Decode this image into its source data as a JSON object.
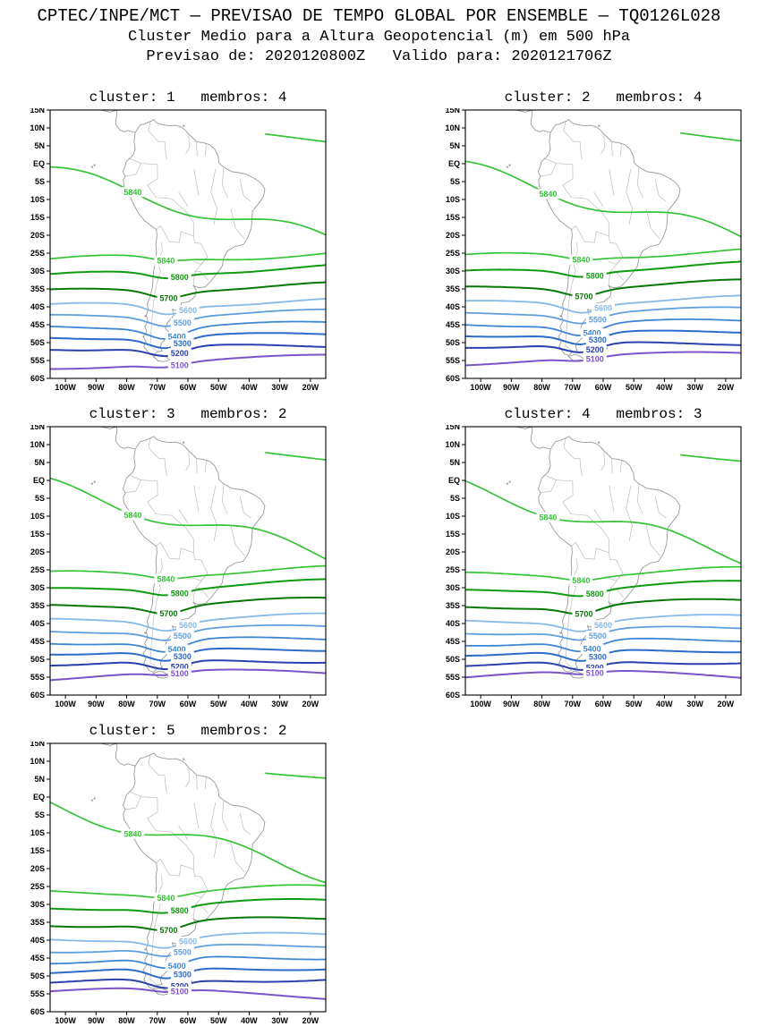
{
  "header": {
    "line1": "CPTEC/INPE/MCT — PREVISAO DE TEMPO GLOBAL POR ENSEMBLE — TQ0126L028",
    "line2": "Cluster Medio para a Altura Geopotencial (m) em 500 hPa",
    "line3": "Previsao de: 2020120800Z   Valido para: 2020121706Z"
  },
  "chart_data": {
    "type": "contour-map",
    "title": "Cluster Medio para a Altura Geopotencial (m) em 500 hPa",
    "variable": "Altura Geopotencial em 500 hPa",
    "units": "m",
    "init_time": "2020120800Z",
    "valid_time": "2020121706Z",
    "model": "CPTEC/INPE/MCT PREVISAO DE TEMPO GLOBAL POR ENSEMBLE TQ0126L028",
    "panels": [
      {
        "cluster": 1,
        "membros": 4,
        "title": "cluster: 1   membros: 4"
      },
      {
        "cluster": 2,
        "membros": 4,
        "title": "cluster: 2   membros: 4"
      },
      {
        "cluster": 3,
        "membros": 2,
        "title": "cluster: 3   membros: 2"
      },
      {
        "cluster": 4,
        "membros": 3,
        "title": "cluster: 4   membros: 3"
      },
      {
        "cluster": 5,
        "membros": 2,
        "title": "cluster: 5   membros: 2"
      }
    ],
    "lat_ticks": [
      "15N",
      "10N",
      "5N",
      "EQ",
      "5S",
      "10S",
      "15S",
      "20S",
      "25S",
      "30S",
      "35S",
      "40S",
      "45S",
      "50S",
      "55S",
      "60S"
    ],
    "lon_ticks": [
      "100W",
      "90W",
      "80W",
      "70W",
      "60W",
      "50W",
      "40W",
      "30W",
      "20W"
    ],
    "lon_range_deg": [
      -105,
      -15
    ],
    "lat_range_deg": [
      15,
      -60
    ],
    "contour_levels_m": [
      5100,
      5200,
      5300,
      5400,
      5500,
      5600,
      5700,
      5800,
      5840
    ],
    "contours": [
      {
        "level": "5840",
        "color": "#35c435",
        "w": 1.7,
        "base": -2.0,
        "slope": -19.0,
        "amp": 2.5,
        "freq": 1.3,
        "phase": 0.1,
        "dip": 0.0,
        "t0": 0.0,
        "t1": 1.0,
        "labels": [
          0.3
        ]
      },
      {
        "level": "5840",
        "color": "#35c435",
        "w": 1.7,
        "base": 13.5,
        "slope": -7.0,
        "amp": 1.0,
        "freq": 0.5,
        "phase": 0.0,
        "dip": 0.0,
        "t0": 0.78,
        "t1": 1.0,
        "labels": []
      },
      {
        "level": "5840",
        "color": "#35c435",
        "w": 1.7,
        "base": -26.5,
        "slope": 1.5,
        "amp": 1.0,
        "freq": 1.0,
        "phase": 0.05,
        "dip": 1.0,
        "t0": 0.0,
        "t1": 1.0,
        "labels": [
          0.42
        ]
      },
      {
        "level": "5800",
        "color": "#0f9b0f",
        "w": 2.0,
        "base": -31.0,
        "slope": 2.5,
        "amp": 0.8,
        "freq": 1.0,
        "phase": 0.12,
        "dip": 1.5,
        "t0": 0.0,
        "t1": 1.0,
        "labels": [
          0.47
        ]
      },
      {
        "level": "5700",
        "color": "#067806",
        "w": 2.0,
        "base": -35.5,
        "slope": 2.0,
        "amp": 0.8,
        "freq": 1.0,
        "phase": 0.2,
        "dip": 2.0,
        "t0": 0.0,
        "t1": 1.0,
        "labels": [
          0.43
        ]
      },
      {
        "level": "5600",
        "color": "#86b9e8",
        "w": 1.8,
        "base": -39.5,
        "slope": 1.5,
        "amp": 0.8,
        "freq": 1.0,
        "phase": 0.15,
        "dip": 2.5,
        "t0": 0.0,
        "t1": 1.0,
        "labels": [
          0.5
        ]
      },
      {
        "level": "5500",
        "color": "#5f9fdf",
        "w": 1.8,
        "base": -42.5,
        "slope": 1.5,
        "amp": 0.7,
        "freq": 1.0,
        "phase": 0.3,
        "dip": 2.5,
        "t0": 0.0,
        "t1": 1.0,
        "labels": [
          0.48
        ]
      },
      {
        "level": "5400",
        "color": "#3f85d6",
        "w": 1.8,
        "base": -45.5,
        "slope": 1.2,
        "amp": 0.7,
        "freq": 1.0,
        "phase": 0.4,
        "dip": 3.0,
        "t0": 0.0,
        "t1": 1.0,
        "labels": [
          0.46
        ]
      },
      {
        "level": "5300",
        "color": "#2b6bc9",
        "w": 2.0,
        "base": -48.3,
        "slope": 1.0,
        "amp": 0.6,
        "freq": 1.0,
        "phase": 0.5,
        "dip": 3.0,
        "t0": 0.0,
        "t1": 1.0,
        "labels": [
          0.48
        ]
      },
      {
        "level": "5200",
        "color": "#2c3fae",
        "w": 2.0,
        "base": -51.3,
        "slope": 0.8,
        "amp": 0.6,
        "freq": 1.0,
        "phase": 0.6,
        "dip": 2.5,
        "t0": 0.0,
        "t1": 1.0,
        "labels": [
          0.47
        ]
      },
      {
        "level": "5100",
        "color": "#7b52c9",
        "w": 2.0,
        "base": -55.0,
        "slope": 0.0,
        "amp": 2.0,
        "freq": 0.5,
        "phase": -0.25,
        "dip": 1.0,
        "t0": 0.0,
        "t1": 1.0,
        "labels": [
          0.47
        ]
      }
    ],
    "map": {
      "stroke": "#9a9a9a",
      "border_stroke": "#bdbdbd",
      "coast": [
        {
          "closed": true,
          "pts": [
            [
              -77.2,
              8.7
            ],
            [
              -75.6,
              10.8
            ],
            [
              -74.2,
              11.1
            ],
            [
              -72.3,
              11.8
            ],
            [
              -71.1,
              12.3
            ],
            [
              -70.2,
              11.4
            ],
            [
              -68.3,
              10.9
            ],
            [
              -66.2,
              10.6
            ],
            [
              -63.9,
              10.7
            ],
            [
              -62.1,
              10.2
            ],
            [
              -60.8,
              9.3
            ],
            [
              -59.8,
              8.3
            ],
            [
              -58.5,
              7.3
            ],
            [
              -57.2,
              6.1
            ],
            [
              -55.1,
              5.9
            ],
            [
              -52.9,
              5.3
            ],
            [
              -51.3,
              4.1
            ],
            [
              -50.1,
              2.0
            ],
            [
              -49.9,
              0.2
            ],
            [
              -48.4,
              -0.9
            ],
            [
              -45.8,
              -2.2
            ],
            [
              -43.4,
              -2.5
            ],
            [
              -41.1,
              -2.9
            ],
            [
              -38.7,
              -3.9
            ],
            [
              -36.5,
              -5.1
            ],
            [
              -34.9,
              -7.0
            ],
            [
              -35.3,
              -9.2
            ],
            [
              -37.1,
              -11.3
            ],
            [
              -38.9,
              -13.2
            ],
            [
              -39.1,
              -15.7
            ],
            [
              -39.3,
              -17.9
            ],
            [
              -40.3,
              -20.4
            ],
            [
              -41.9,
              -22.6
            ],
            [
              -44.6,
              -23.1
            ],
            [
              -47.1,
              -24.4
            ],
            [
              -48.3,
              -26.3
            ],
            [
              -48.8,
              -28.6
            ],
            [
              -50.7,
              -30.9
            ],
            [
              -52.4,
              -32.7
            ],
            [
              -54.3,
              -34.4
            ],
            [
              -56.6,
              -34.7
            ],
            [
              -58.2,
              -34.1
            ],
            [
              -57.3,
              -35.4
            ],
            [
              -57.7,
              -37.1
            ],
            [
              -59.8,
              -38.6
            ],
            [
              -62.1,
              -38.9
            ],
            [
              -62.4,
              -40.7
            ],
            [
              -64.3,
              -41.0
            ],
            [
              -65.1,
              -40.7
            ],
            [
              -64.6,
              -42.4
            ],
            [
              -66.8,
              -44.6
            ],
            [
              -67.4,
              -46.1
            ],
            [
              -65.9,
              -47.3
            ],
            [
              -67.0,
              -48.8
            ],
            [
              -68.6,
              -50.1
            ],
            [
              -69.0,
              -51.3
            ],
            [
              -68.4,
              -52.4
            ],
            [
              -69.9,
              -52.5
            ],
            [
              -71.3,
              -53.6
            ],
            [
              -72.6,
              -53.2
            ],
            [
              -73.4,
              -52.2
            ],
            [
              -74.4,
              -51.1
            ],
            [
              -73.7,
              -49.7
            ],
            [
              -74.6,
              -48.3
            ],
            [
              -73.4,
              -46.9
            ],
            [
              -74.1,
              -45.5
            ],
            [
              -73.1,
              -44.0
            ],
            [
              -73.6,
              -42.4
            ],
            [
              -73.0,
              -40.8
            ],
            [
              -73.3,
              -39.3
            ],
            [
              -72.4,
              -37.2
            ],
            [
              -71.6,
              -34.6
            ],
            [
              -71.4,
              -32.2
            ],
            [
              -71.2,
              -29.9
            ],
            [
              -70.5,
              -27.1
            ],
            [
              -70.3,
              -24.6
            ],
            [
              -70.5,
              -22.4
            ],
            [
              -70.1,
              -20.3
            ],
            [
              -70.3,
              -18.4
            ],
            [
              -71.8,
              -17.5
            ],
            [
              -74.2,
              -15.9
            ],
            [
              -76.1,
              -13.9
            ],
            [
              -77.6,
              -11.6
            ],
            [
              -79.1,
              -8.7
            ],
            [
              -80.9,
              -6.3
            ],
            [
              -81.1,
              -4.6
            ],
            [
              -80.4,
              -3.5
            ],
            [
              -81.2,
              -2.3
            ],
            [
              -80.6,
              -0.9
            ],
            [
              -80.1,
              0.6
            ],
            [
              -79.0,
              1.5
            ],
            [
              -77.8,
              2.6
            ],
            [
              -77.2,
              4.1
            ],
            [
              -77.6,
              6.3
            ],
            [
              -77.4,
              7.6
            ]
          ]
        },
        {
          "closed": true,
          "pts": [
            [
              -71.3,
              -53.9
            ],
            [
              -69.5,
              -53.4
            ],
            [
              -68.3,
              -53.5
            ],
            [
              -67.0,
              -54.1
            ],
            [
              -65.9,
              -54.9
            ],
            [
              -68.0,
              -55.3
            ],
            [
              -69.7,
              -55.1
            ]
          ]
        },
        {
          "closed": false,
          "pts": [
            [
              -89.0,
              15.2
            ],
            [
              -88.0,
              14.9
            ],
            [
              -86.8,
              14.7
            ],
            [
              -85.4,
              14.4
            ],
            [
              -84.4,
              14.7
            ],
            [
              -83.3,
              14.9
            ],
            [
              -83.1,
              13.9
            ],
            [
              -83.5,
              12.4
            ],
            [
              -83.6,
              11.0
            ],
            [
              -82.2,
              9.4
            ],
            [
              -80.7,
              8.9
            ],
            [
              -79.7,
              9.3
            ],
            [
              -78.4,
              9.0
            ],
            [
              -77.2,
              8.7
            ]
          ]
        }
      ],
      "borders": [
        [
          [
            -72.3,
            11.8
          ],
          [
            -72.9,
            9.2
          ],
          [
            -70.6,
            7.0
          ],
          [
            -69.4,
            6.1
          ],
          [
            -67.6,
            6.2
          ],
          [
            -67.4,
            3.8
          ],
          [
            -66.9,
            1.2
          ]
        ],
        [
          [
            -78.9,
            1.4
          ],
          [
            -75.3,
            0.1
          ],
          [
            -70.0,
            -0.2
          ],
          [
            -69.9,
            -4.2
          ],
          [
            -73.2,
            -6.0
          ],
          [
            -70.5,
            -9.4
          ],
          [
            -65.3,
            -9.8
          ],
          [
            -60.5,
            -13.5
          ],
          [
            -58.2,
            -16.3
          ],
          [
            -58.1,
            -20.2
          ],
          [
            -57.8,
            -22.1
          ],
          [
            -55.7,
            -22.3
          ],
          [
            -53.6,
            -26.0
          ],
          [
            -57.6,
            -30.2
          ],
          [
            -58.1,
            -32.4
          ],
          [
            -58.2,
            -34.1
          ]
        ],
        [
          [
            -70.3,
            -18.4
          ],
          [
            -69.0,
            -17.3
          ],
          [
            -66.0,
            -21.8
          ],
          [
            -62.8,
            -22.0
          ],
          [
            -62.3,
            -19.0
          ],
          [
            -58.1,
            -20.2
          ]
        ],
        [
          [
            -68.6,
            -21.9
          ],
          [
            -68.4,
            -24.5
          ],
          [
            -69.8,
            -27.3
          ],
          [
            -69.0,
            -30.2
          ],
          [
            -70.1,
            -33.3
          ],
          [
            -70.8,
            -36.2
          ],
          [
            -71.3,
            -39.3
          ],
          [
            -71.7,
            -43.5
          ],
          [
            -72.1,
            -47.8
          ],
          [
            -72.3,
            -50.9
          ],
          [
            -69.9,
            -52.5
          ]
        ],
        [
          [
            -48.3,
            -1.0
          ],
          [
            -48.8,
            -6.0
          ],
          [
            -47.0,
            -9.5
          ]
        ],
        [
          [
            -43.0,
            -4.5
          ],
          [
            -41.8,
            -9.0
          ],
          [
            -39.5,
            -10.5
          ]
        ],
        [
          [
            -51.0,
            -1.5
          ],
          [
            -52.5,
            -8.0
          ],
          [
            -50.5,
            -12.5
          ],
          [
            -51.5,
            -17.0
          ]
        ],
        [
          [
            -46.0,
            -12.5
          ],
          [
            -44.5,
            -18.0
          ],
          [
            -41.5,
            -21.0
          ]
        ],
        [
          [
            -58.0,
            -1.5
          ],
          [
            -56.5,
            -9.0
          ]
        ],
        [
          [
            -63.0,
            -8.0
          ],
          [
            -60.0,
            -12.0
          ]
        ],
        [
          [
            -58.2,
            -27.3
          ],
          [
            -55.7,
            -28.1
          ],
          [
            -53.6,
            -26.0
          ]
        ],
        [
          [
            -53.4,
            -32.6
          ],
          [
            -56.0,
            -30.1
          ],
          [
            -57.6,
            -30.2
          ]
        ],
        [
          [
            -59.8,
            8.3
          ],
          [
            -59.5,
            4.5
          ],
          [
            -60.7,
            2.8
          ]
        ],
        [
          [
            -57.2,
            6.1
          ],
          [
            -57.0,
            2.0
          ]
        ],
        [
          [
            -54.0,
            5.5
          ],
          [
            -54.4,
            2.3
          ]
        ],
        [
          [
            -80.4,
            -3.5
          ],
          [
            -77.0,
            -3.0
          ],
          [
            -75.3,
            0.1
          ]
        ]
      ],
      "islands": [
        [
          -90.5,
          -0.4
        ],
        [
          -91.3,
          -0.9
        ],
        [
          -61.4,
          10.6
        ],
        [
          -58.9,
          -51.6
        ],
        [
          -60.0,
          -51.8
        ],
        [
          -73.9,
          -42.6
        ]
      ]
    }
  }
}
